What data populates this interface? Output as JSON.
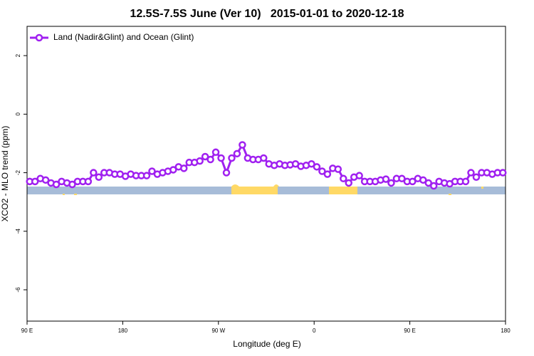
{
  "chart_data": {
    "type": "line",
    "title": "12.5S-7.5S June (Ver 10)   2015-01-01 to 2020-12-18",
    "x_label": "Longitude (deg E)",
    "y_label": "XCO2 - MLO trend (ppm)",
    "xlim": [
      90,
      540
    ],
    "xticks": [
      {
        "value": 90,
        "label": "90 E"
      },
      {
        "value": 180,
        "label": "180"
      },
      {
        "value": 270,
        "label": "90 W"
      },
      {
        "value": 360,
        "label": "0"
      },
      {
        "value": 450,
        "label": "90 E"
      },
      {
        "value": 540,
        "label": "180"
      }
    ],
    "ylim": [
      -7.07,
      3.0
    ],
    "yticks": [
      -6,
      -4,
      -2,
      0,
      2
    ],
    "legend": "top-left",
    "x": [
      92.5,
      97.5,
      102.5,
      107.5,
      112.5,
      117.5,
      122.5,
      127.5,
      132.5,
      137.5,
      142.5,
      147.5,
      152.5,
      157.5,
      162.5,
      167.5,
      172.5,
      177.5,
      182.5,
      187.5,
      192.5,
      197.5,
      202.5,
      207.5,
      212.5,
      217.5,
      222.5,
      227.5,
      232.5,
      237.5,
      242.5,
      247.5,
      252.5,
      257.5,
      262.5,
      267.5,
      272.5,
      277.5,
      282.5,
      287.5,
      292.5,
      297.5,
      302.5,
      307.5,
      312.5,
      317.5,
      322.5,
      327.5,
      332.5,
      337.5,
      342.5,
      347.5,
      352.5,
      357.5,
      362.5,
      367.5,
      372.5,
      377.5,
      382.5,
      387.5,
      392.5,
      397.5,
      402.5,
      407.5,
      412.5,
      417.5,
      422.5,
      427.5,
      432.5,
      437.5,
      442.5,
      447.5,
      452.5,
      457.5,
      462.5,
      467.5,
      472.5,
      477.5,
      482.5,
      487.5,
      492.5,
      497.5,
      502.5,
      507.5,
      512.5,
      517.5,
      522.5,
      527.5,
      532.5,
      537.5
    ],
    "series": [
      {
        "name": "Land (Nadir&Glint) and Ocean (Glint)",
        "color": "#a020f0",
        "values": [
          -2.3,
          -2.3,
          -2.2,
          -2.25,
          -2.35,
          -2.4,
          -2.3,
          -2.35,
          -2.4,
          -2.3,
          -2.3,
          -2.3,
          -2.0,
          -2.15,
          -2.0,
          -2.0,
          -2.05,
          -2.05,
          -2.12,
          -2.05,
          -2.1,
          -2.1,
          -2.1,
          -1.95,
          -2.05,
          -2.0,
          -1.95,
          -1.9,
          -1.8,
          -1.85,
          -1.65,
          -1.65,
          -1.6,
          -1.45,
          -1.55,
          -1.3,
          -1.5,
          -2.0,
          -1.5,
          -1.35,
          -1.05,
          -1.5,
          -1.55,
          -1.55,
          -1.5,
          -1.7,
          -1.75,
          -1.7,
          -1.75,
          -1.73,
          -1.7,
          -1.78,
          -1.75,
          -1.7,
          -1.8,
          -1.95,
          -2.05,
          -1.85,
          -1.88,
          -2.2,
          -2.35,
          -2.15,
          -2.1,
          -2.3,
          -2.3,
          -2.3,
          -2.25,
          -2.22,
          -2.35,
          -2.2,
          -2.2,
          -2.3,
          -2.3,
          -2.2,
          -2.25,
          -2.35,
          -2.45,
          -2.3,
          -2.35,
          -2.38,
          -2.3,
          -2.3,
          -2.3,
          -2.0,
          -2.15,
          -2.0,
          -2.0,
          -2.05,
          -2.0,
          -2.0
        ]
      }
    ]
  }
}
